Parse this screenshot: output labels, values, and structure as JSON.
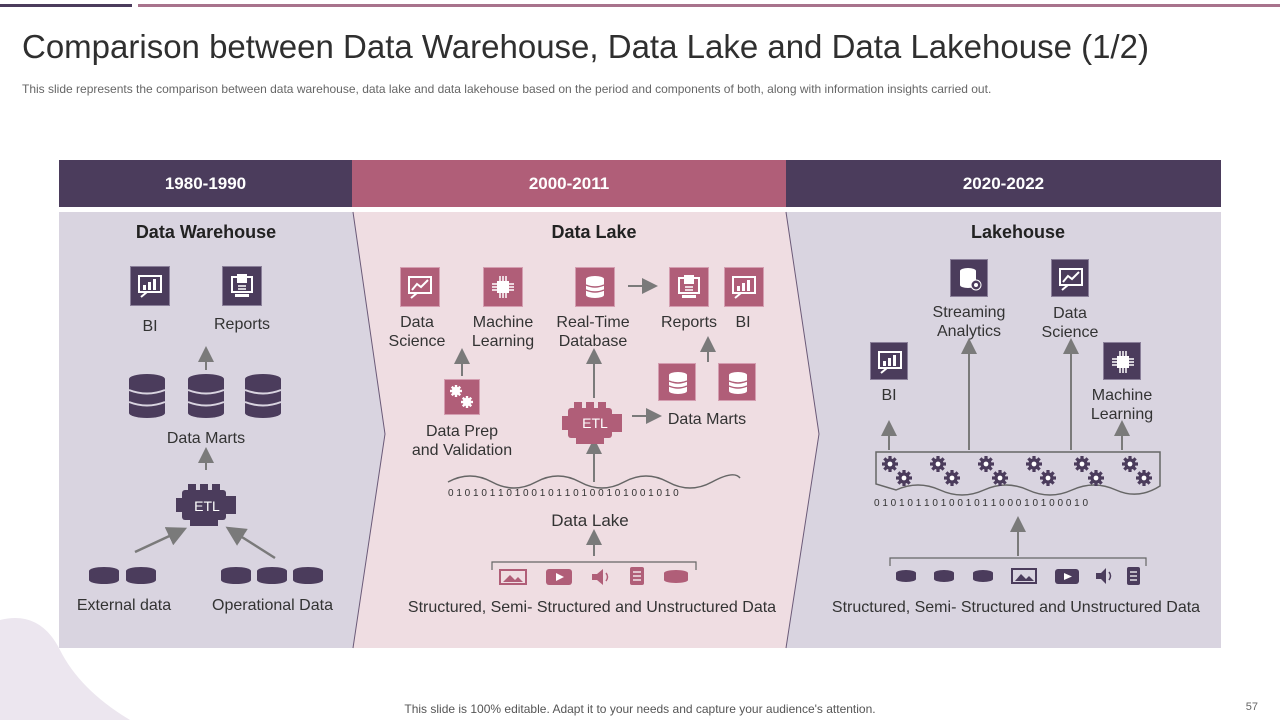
{
  "slide": {
    "title": "Comparison between Data Warehouse, Data Lake and Data Lakehouse (1/2)",
    "subtitle": "This slide represents the comparison between data warehouse,  data lake and data lakehouse based on the period and components of both, along with information insights carried out.",
    "footer": "This slide is 100% editable. Adapt it to your needs and capture your audience's attention.",
    "page_number": "57"
  },
  "colors": {
    "dark": "#4b3c5c",
    "pink": "#b05e78",
    "panel_grey": "#d9d4e0",
    "panel_pink": "#efdde2"
  },
  "periods": [
    "1980-1990",
    "2000-2011",
    "2020-2022"
  ],
  "warehouse": {
    "heading": "Data Warehouse",
    "bi": "BI",
    "reports": "Reports",
    "data_marts": "Data Marts",
    "etl": "ETL",
    "external": "External data",
    "operational": "Operational Data"
  },
  "lake": {
    "heading": "Data Lake",
    "data_science_1": "Data",
    "data_science_2": "Science",
    "ml_1": "Machine",
    "ml_2": "Learning",
    "rtdb_1": "Real-Time",
    "rtdb_2": "Database",
    "reports": "Reports",
    "bi": "BI",
    "prep_1": "Data Prep",
    "prep_2": "and Validation",
    "etl": "ETL",
    "data_marts": "Data Marts",
    "bits": "0 1 0 1 0 1 1 0 1 0 0 1 0 1 1 0 1 0 0 1 0 1 0 0 1 0 1 0",
    "lake_label": "Data Lake",
    "sources": "Structured,  Semi- Structured and Unstructured  Data"
  },
  "lakehouse": {
    "heading": "Lakehouse",
    "streaming_1": "Streaming",
    "streaming_2": "Analytics",
    "data_science_1": "Data",
    "data_science_2": "Science",
    "bi": "BI",
    "ml_1": "Machine",
    "ml_2": "Learning",
    "bits": "0 1 0 1 0 1 1 0 1 0 0 1 0 1 1 0 0 0 1 0 1 0 0 0 1 0",
    "sources": "Structured,  Semi- Structured and Unstructured  Data"
  }
}
